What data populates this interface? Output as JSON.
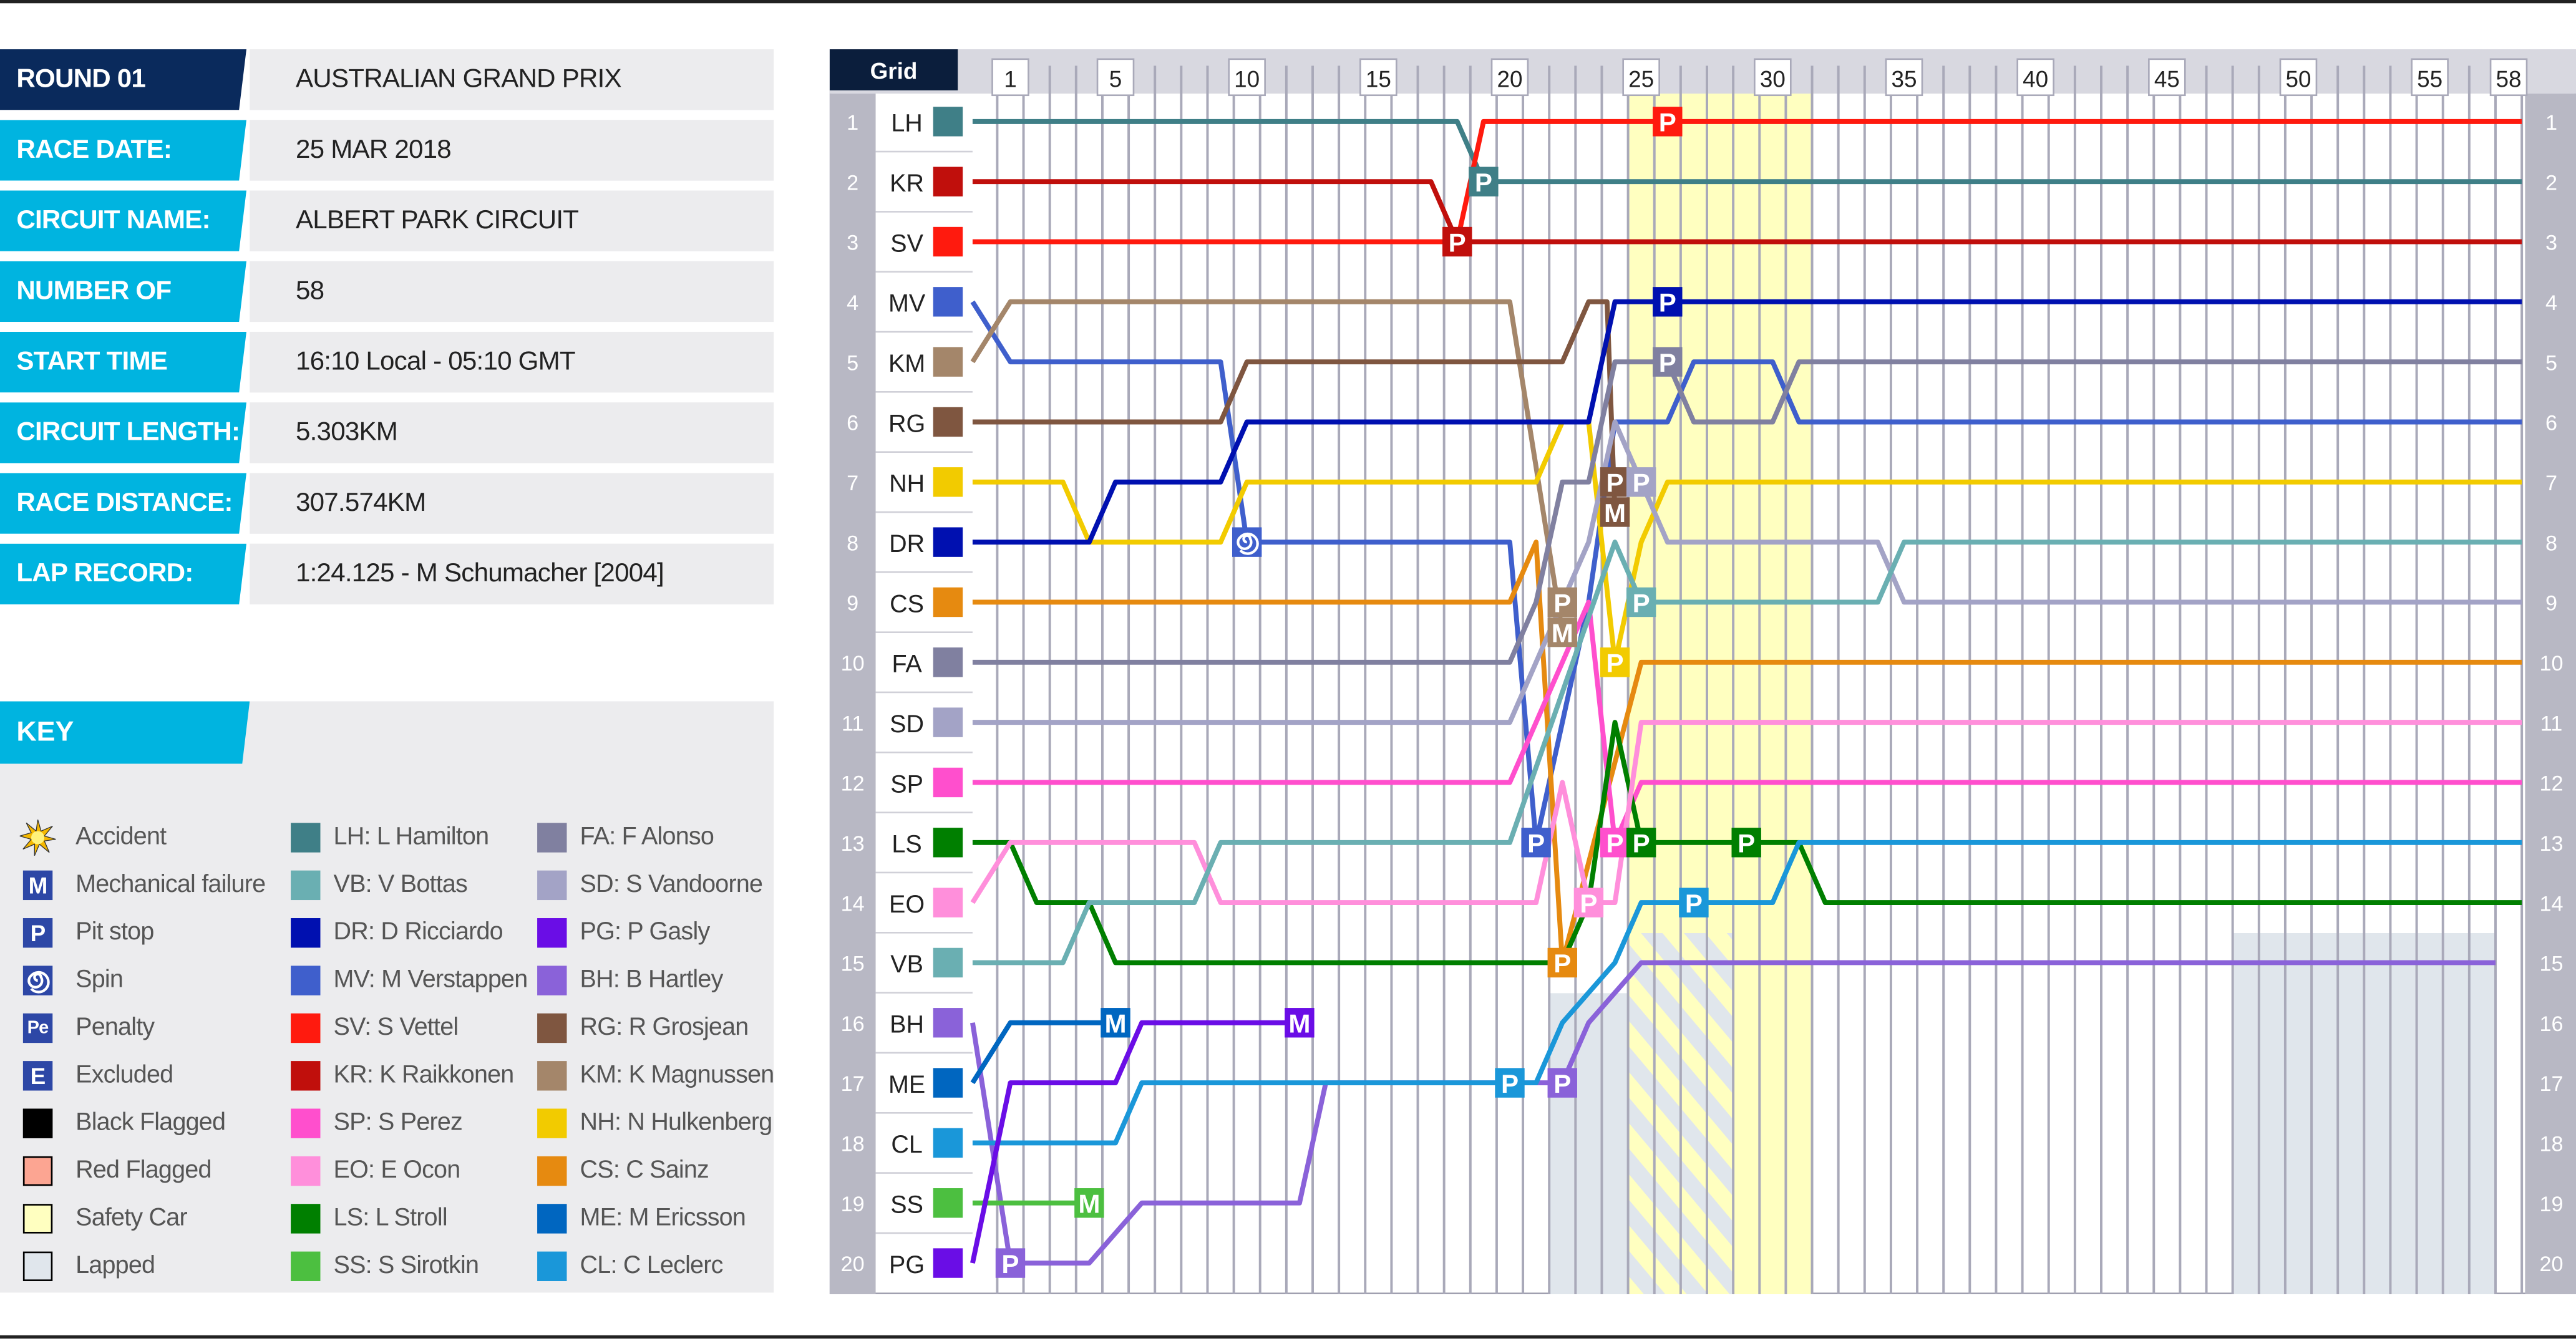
{
  "info": [
    {
      "label": "ROUND 01",
      "value": "AUSTRALIAN GRAND PRIX"
    },
    {
      "label": "RACE DATE:",
      "value": "25 MAR 2018"
    },
    {
      "label": "CIRCUIT NAME:",
      "value": "ALBERT PARK CIRCUIT"
    },
    {
      "label": "NUMBER OF LAPS:",
      "value": "58"
    },
    {
      "label": "START TIME",
      "value": "16:10 Local - 05:10 GMT"
    },
    {
      "label": "CIRCUIT LENGTH:",
      "value": "5.303KM"
    },
    {
      "label": "RACE DISTANCE:",
      "value": "307.574KM"
    },
    {
      "label": "LAP RECORD:",
      "value": "1:24.125 - M Schumacher [2004]"
    }
  ],
  "key": {
    "title": "KEY",
    "symbols": [
      {
        "label": "Accident",
        "icon": "accident-star-icon",
        "color": "#f5b800"
      },
      {
        "label": "Mechanical failure",
        "icon": "mechanical-failure-icon",
        "glyph": "M",
        "color": "#2d47a6"
      },
      {
        "label": "Pit stop",
        "icon": "pit-stop-icon",
        "glyph": "P",
        "color": "#2d47a6"
      },
      {
        "label": "Spin",
        "icon": "spin-icon",
        "color": "#2d47a6"
      },
      {
        "label": "Penalty",
        "icon": "penalty-icon",
        "glyph": "Pe",
        "color": "#2d47a6"
      },
      {
        "label": "Excluded",
        "icon": "excluded-icon",
        "glyph": "E",
        "color": "#2d47a6"
      },
      {
        "label": "Black Flagged",
        "icon": "black-flag-swatch",
        "color": "#000000"
      },
      {
        "label": "Red Flagged",
        "icon": "red-flag-swatch",
        "color": "#fca592"
      },
      {
        "label": "Safety Car",
        "icon": "safety-car-swatch",
        "color": "#ffffc0"
      },
      {
        "label": "Lapped",
        "icon": "lapped-swatch",
        "color": "#e0e6ec"
      }
    ],
    "drivers": [
      {
        "label": "LH: L Hamilton",
        "color": "#3f7f87"
      },
      {
        "label": "VB: V Bottas",
        "color": "#6aafb2"
      },
      {
        "label": "DR: D Ricciardo",
        "color": "#0010b0"
      },
      {
        "label": "MV: M Verstappen",
        "color": "#3f5fcc"
      },
      {
        "label": "SV: S Vettel",
        "color": "#ff1a0e"
      },
      {
        "label": "KR: K Raikkonen",
        "color": "#c00f0c"
      },
      {
        "label": "SP: S Perez",
        "color": "#ff4fcd"
      },
      {
        "label": "EO: E Ocon",
        "color": "#ff8fdb"
      },
      {
        "label": "LS: L Stroll",
        "color": "#007f00"
      },
      {
        "label": "SS: S Sirotkin",
        "color": "#4cbf40"
      },
      {
        "label": "FA: F Alonso",
        "color": "#8080a0"
      },
      {
        "label": "SD: S Vandoorne",
        "color": "#a3a3c6"
      },
      {
        "label": "PG: P Gasly",
        "color": "#6a0de6"
      },
      {
        "label": "BH: B Hartley",
        "color": "#8a62d9"
      },
      {
        "label": "RG: R Grosjean",
        "color": "#7f5640"
      },
      {
        "label": "KM: K Magnussen",
        "color": "#a4866a"
      },
      {
        "label": "NH: N Hulkenberg",
        "color": "#f2cb00"
      },
      {
        "label": "CS: C Sainz",
        "color": "#e68a10"
      },
      {
        "label": "ME: M Ericsson",
        "color": "#0066c0"
      },
      {
        "label": "CL: C Leclerc",
        "color": "#1a97d9"
      }
    ]
  },
  "chart_data": {
    "type": "line",
    "grid_label": "Grid",
    "x_ticks": [
      "1",
      "5",
      "10",
      "15",
      "20",
      "25",
      "30",
      "35",
      "40",
      "45",
      "50",
      "55",
      "58"
    ],
    "x_range": [
      0,
      58
    ],
    "y_range": [
      1,
      20
    ],
    "y_ticks": [
      "1",
      "2",
      "3",
      "4",
      "5",
      "6",
      "7",
      "8",
      "9",
      "10",
      "11",
      "12",
      "13",
      "14",
      "15",
      "16",
      "17",
      "18",
      "19",
      "20"
    ],
    "grid_lines": true,
    "safety_car_laps": [
      25,
      31
    ],
    "lapped_regions": [
      {
        "laps": [
          22,
          24
        ],
        "positions": [
          16,
          20
        ]
      },
      {
        "laps": [
          25,
          28
        ],
        "positions": [
          15,
          20
        ],
        "hatched": true
      },
      {
        "laps": [
          48,
          57
        ],
        "positions": [
          15,
          20
        ]
      }
    ],
    "grid_order": [
      "LH",
      "KR",
      "SV",
      "MV",
      "KM",
      "RG",
      "NH",
      "DR",
      "CS",
      "FA",
      "SD",
      "SP",
      "LS",
      "EO",
      "VB",
      "BH",
      "ME",
      "CL",
      "SS",
      "PG"
    ],
    "series": [
      {
        "code": "LH",
        "color": "#3f7f87",
        "points": [
          [
            0,
            1
          ],
          [
            18,
            1
          ],
          [
            19,
            2
          ],
          [
            58,
            2
          ]
        ]
      },
      {
        "code": "KR",
        "color": "#c00f0c",
        "points": [
          [
            0,
            2
          ],
          [
            17,
            2
          ],
          [
            18,
            3
          ],
          [
            58,
            3
          ]
        ]
      },
      {
        "code": "SV",
        "color": "#ff1a0e",
        "points": [
          [
            0,
            3
          ],
          [
            18,
            3
          ],
          [
            19,
            1
          ],
          [
            58,
            1
          ]
        ]
      },
      {
        "code": "MV",
        "color": "#3f5fcc",
        "points": [
          [
            0,
            4
          ],
          [
            1,
            5
          ],
          [
            9,
            5
          ],
          [
            10,
            8
          ],
          [
            20,
            8
          ],
          [
            21,
            13
          ],
          [
            23,
            9
          ],
          [
            24,
            6
          ],
          [
            26,
            6
          ],
          [
            27,
            5
          ],
          [
            30,
            5
          ],
          [
            31,
            6
          ],
          [
            58,
            6
          ]
        ]
      },
      {
        "code": "KM",
        "color": "#a4866a",
        "points": [
          [
            0,
            5
          ],
          [
            1,
            4
          ],
          [
            20,
            4
          ],
          [
            22,
            9.5
          ]
        ]
      },
      {
        "code": "RG",
        "color": "#7f5640",
        "points": [
          [
            0,
            6
          ],
          [
            9,
            6
          ],
          [
            10,
            5
          ],
          [
            22,
            5
          ],
          [
            23,
            4
          ],
          [
            23.7,
            4
          ],
          [
            24,
            7.5
          ]
        ]
      },
      {
        "code": "NH",
        "color": "#f2cb00",
        "points": [
          [
            0,
            7
          ],
          [
            3,
            7
          ],
          [
            4,
            8
          ],
          [
            9,
            8
          ],
          [
            10,
            7
          ],
          [
            21,
            7
          ],
          [
            22,
            6
          ],
          [
            23,
            6
          ],
          [
            24,
            10
          ],
          [
            25,
            8
          ],
          [
            26,
            7
          ],
          [
            58,
            7
          ]
        ]
      },
      {
        "code": "DR",
        "color": "#0010b0",
        "points": [
          [
            0,
            8
          ],
          [
            4,
            8
          ],
          [
            5,
            7
          ],
          [
            9,
            7
          ],
          [
            10,
            6
          ],
          [
            23,
            6
          ],
          [
            24,
            4
          ],
          [
            58,
            4
          ]
        ]
      },
      {
        "code": "CS",
        "color": "#e68a10",
        "points": [
          [
            0,
            9
          ],
          [
            20,
            9
          ],
          [
            21,
            8
          ],
          [
            22,
            15
          ],
          [
            25,
            10
          ],
          [
            58,
            10
          ]
        ]
      },
      {
        "code": "FA",
        "color": "#8080a0",
        "points": [
          [
            0,
            10
          ],
          [
            20,
            10
          ],
          [
            21,
            9
          ],
          [
            22,
            7
          ],
          [
            23,
            7
          ],
          [
            24,
            5
          ],
          [
            26,
            5
          ],
          [
            27,
            6
          ],
          [
            30,
            6
          ],
          [
            31,
            5
          ],
          [
            58,
            5
          ]
        ]
      },
      {
        "code": "SD",
        "color": "#a3a3c6",
        "points": [
          [
            0,
            11
          ],
          [
            20,
            11
          ],
          [
            21,
            10
          ],
          [
            22,
            9
          ],
          [
            23,
            8
          ],
          [
            24,
            6
          ],
          [
            25,
            7
          ],
          [
            26,
            8
          ],
          [
            34,
            8
          ],
          [
            35,
            9
          ],
          [
            58,
            9
          ]
        ]
      },
      {
        "code": "SP",
        "color": "#ff4fcd",
        "points": [
          [
            0,
            12
          ],
          [
            20,
            12
          ],
          [
            23,
            9
          ],
          [
            24,
            13
          ],
          [
            25,
            12
          ],
          [
            58,
            12
          ]
        ]
      },
      {
        "code": "LS",
        "color": "#007f00",
        "points": [
          [
            0,
            13
          ],
          [
            1,
            13
          ],
          [
            2,
            14
          ],
          [
            4,
            14
          ],
          [
            5,
            15
          ],
          [
            22,
            15
          ],
          [
            23,
            14
          ],
          [
            24,
            11
          ],
          [
            25,
            13
          ],
          [
            31,
            13
          ],
          [
            32,
            14
          ],
          [
            58,
            14
          ]
        ]
      },
      {
        "code": "EO",
        "color": "#ff8fdb",
        "points": [
          [
            0,
            14
          ],
          [
            1,
            13
          ],
          [
            8,
            13
          ],
          [
            9,
            14
          ],
          [
            21,
            14
          ],
          [
            22,
            12
          ],
          [
            23,
            14
          ],
          [
            24,
            14
          ],
          [
            25,
            11
          ],
          [
            58,
            11
          ]
        ]
      },
      {
        "code": "VB",
        "color": "#6aafb2",
        "points": [
          [
            0,
            15
          ],
          [
            3,
            15
          ],
          [
            4,
            14
          ],
          [
            8,
            14
          ],
          [
            9,
            13
          ],
          [
            20,
            13
          ],
          [
            24,
            8
          ],
          [
            25,
            9
          ],
          [
            34,
            9
          ],
          [
            35,
            8
          ],
          [
            58,
            8
          ]
        ]
      },
      {
        "code": "BH",
        "color": "#8a62d9",
        "points": [
          [
            0,
            16
          ],
          [
            1,
            20
          ],
          [
            4,
            20
          ],
          [
            6,
            19
          ],
          [
            12,
            19
          ],
          [
            13,
            17
          ],
          [
            22,
            17
          ],
          [
            23,
            16
          ],
          [
            25,
            15
          ],
          [
            57,
            15
          ]
        ]
      },
      {
        "code": "ME",
        "color": "#0066c0",
        "points": [
          [
            0,
            17
          ],
          [
            1,
            16
          ],
          [
            5,
            16
          ]
        ]
      },
      {
        "code": "CL",
        "color": "#1a97d9",
        "points": [
          [
            0,
            18
          ],
          [
            5,
            18
          ],
          [
            6,
            17
          ],
          [
            21,
            17
          ],
          [
            22,
            16
          ],
          [
            24,
            15
          ],
          [
            25,
            14
          ],
          [
            30,
            14
          ],
          [
            31,
            13
          ],
          [
            58,
            13
          ]
        ]
      },
      {
        "code": "SS",
        "color": "#4cbf40",
        "points": [
          [
            0,
            19
          ],
          [
            4,
            19
          ]
        ]
      },
      {
        "code": "PG",
        "color": "#6a0de6",
        "points": [
          [
            0,
            20
          ],
          [
            1,
            17
          ],
          [
            5,
            17
          ],
          [
            6,
            16
          ],
          [
            12,
            16
          ]
        ]
      }
    ],
    "events": [
      {
        "code": "SV",
        "lap": 26,
        "pos": 1,
        "type": "P"
      },
      {
        "code": "LH",
        "lap": 19,
        "pos": 2,
        "type": "P"
      },
      {
        "code": "KR",
        "lap": 18,
        "pos": 3,
        "type": "P"
      },
      {
        "code": "DR",
        "lap": 26,
        "pos": 4,
        "type": "P"
      },
      {
        "code": "FA",
        "lap": 26,
        "pos": 5,
        "type": "P"
      },
      {
        "code": "RG",
        "lap": 24,
        "pos": 7,
        "type": "P"
      },
      {
        "code": "RG",
        "lap": 24,
        "pos": 7.5,
        "type": "M"
      },
      {
        "code": "SD",
        "lap": 25,
        "pos": 7,
        "type": "P"
      },
      {
        "code": "MV",
        "lap": 10,
        "pos": 8,
        "type": "spin"
      },
      {
        "code": "KM",
        "lap": 22,
        "pos": 9,
        "type": "P"
      },
      {
        "code": "KM",
        "lap": 22,
        "pos": 9.5,
        "type": "M"
      },
      {
        "code": "VB",
        "lap": 25,
        "pos": 9,
        "type": "P"
      },
      {
        "code": "NH",
        "lap": 24,
        "pos": 10,
        "type": "P"
      },
      {
        "code": "MV",
        "lap": 21,
        "pos": 13,
        "type": "P"
      },
      {
        "code": "SP",
        "lap": 24,
        "pos": 13,
        "type": "P"
      },
      {
        "code": "LS",
        "lap": 25,
        "pos": 13,
        "type": "P"
      },
      {
        "code": "LS",
        "lap": 29,
        "pos": 13,
        "type": "P"
      },
      {
        "code": "EO",
        "lap": 23,
        "pos": 14,
        "type": "P"
      },
      {
        "code": "CL",
        "lap": 27,
        "pos": 14,
        "type": "P"
      },
      {
        "code": "CS",
        "lap": 22,
        "pos": 15,
        "type": "P"
      },
      {
        "code": "ME",
        "lap": 5,
        "pos": 16,
        "type": "M"
      },
      {
        "code": "PG",
        "lap": 12,
        "pos": 16,
        "type": "M"
      },
      {
        "code": "CL",
        "lap": 20,
        "pos": 17,
        "type": "P"
      },
      {
        "code": "BH",
        "lap": 22,
        "pos": 17,
        "type": "P"
      },
      {
        "code": "SS",
        "lap": 4,
        "pos": 19,
        "type": "M"
      },
      {
        "code": "BH",
        "lap": 1,
        "pos": 20,
        "type": "P"
      }
    ]
  }
}
